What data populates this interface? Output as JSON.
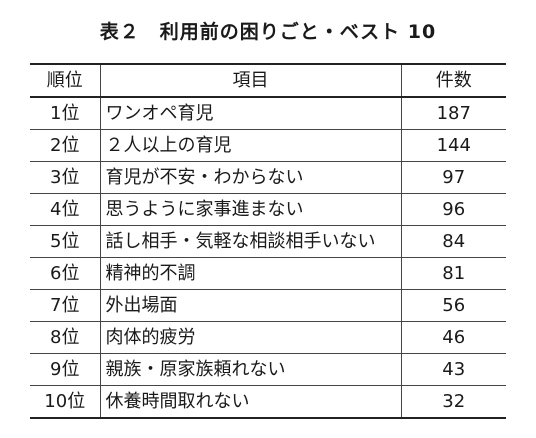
{
  "table": {
    "title": "表２　利用前の困りごと・ベスト 10",
    "headers": [
      "順位",
      "項目",
      "件数"
    ],
    "rows": [
      {
        "rank": "1位",
        "item": "ワンオペ育児",
        "count": "187"
      },
      {
        "rank": "2位",
        "item": "２人以上の育児",
        "count": "144"
      },
      {
        "rank": "3位",
        "item": "育児が不安・わからない",
        "count": "97"
      },
      {
        "rank": "4位",
        "item": "思うように家事進まない",
        "count": "96"
      },
      {
        "rank": "5位",
        "item": "話し相手・気軽な相談相手いない",
        "count": "84"
      },
      {
        "rank": "6位",
        "item": "精神的不調",
        "count": "81"
      },
      {
        "rank": "7位",
        "item": "外出場面",
        "count": "56"
      },
      {
        "rank": "8位",
        "item": "肉体的疲労",
        "count": "46"
      },
      {
        "rank": "9位",
        "item": "親族・原家族頼れない",
        "count": "43"
      },
      {
        "rank": "10位",
        "item": "休養時間取れない",
        "count": "32"
      }
    ]
  }
}
